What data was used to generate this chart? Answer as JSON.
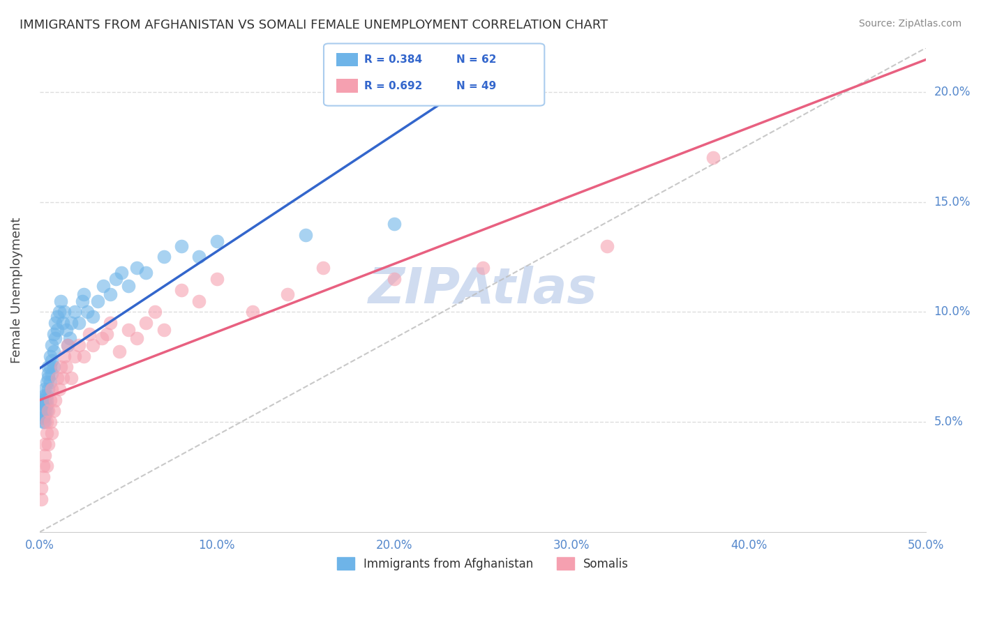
{
  "title": "IMMIGRANTS FROM AFGHANISTAN VS SOMALI FEMALE UNEMPLOYMENT CORRELATION CHART",
  "source": "Source: ZipAtlas.com",
  "ylabel": "Female Unemployment",
  "legend1_r": "R = 0.384",
  "legend1_n": "N = 62",
  "legend2_r": "R = 0.692",
  "legend2_n": "N = 49",
  "legend1_label": "Immigrants from Afghanistan",
  "legend2_label": "Somalis",
  "color_blue": "#6EB4E8",
  "color_pink": "#F5A0B0",
  "color_blue_line": "#3366CC",
  "color_pink_line": "#E86080",
  "color_dashed": "#BBBBBB",
  "background_color": "#FFFFFF",
  "grid_color": "#DDDDDD",
  "title_color": "#333333",
  "watermark_color": "#D0DCF0",
  "xlim": [
    0.0,
    0.5
  ],
  "ylim": [
    0.0,
    0.22
  ],
  "afghanistan_x": [
    0.001,
    0.002,
    0.002,
    0.002,
    0.002,
    0.003,
    0.003,
    0.003,
    0.003,
    0.003,
    0.003,
    0.003,
    0.004,
    0.004,
    0.004,
    0.004,
    0.004,
    0.005,
    0.005,
    0.005,
    0.005,
    0.006,
    0.006,
    0.006,
    0.007,
    0.007,
    0.007,
    0.008,
    0.008,
    0.008,
    0.009,
    0.009,
    0.01,
    0.01,
    0.011,
    0.012,
    0.013,
    0.014,
    0.015,
    0.016,
    0.017,
    0.018,
    0.02,
    0.022,
    0.024,
    0.025,
    0.027,
    0.03,
    0.033,
    0.036,
    0.04,
    0.043,
    0.046,
    0.05,
    0.055,
    0.06,
    0.07,
    0.08,
    0.09,
    0.1,
    0.15,
    0.2
  ],
  "afghanistan_y": [
    0.06,
    0.055,
    0.058,
    0.05,
    0.052,
    0.06,
    0.055,
    0.058,
    0.062,
    0.065,
    0.05,
    0.053,
    0.058,
    0.062,
    0.068,
    0.055,
    0.06,
    0.07,
    0.075,
    0.065,
    0.072,
    0.075,
    0.08,
    0.068,
    0.085,
    0.078,
    0.072,
    0.09,
    0.082,
    0.075,
    0.088,
    0.095,
    0.092,
    0.098,
    0.1,
    0.105,
    0.095,
    0.1,
    0.092,
    0.085,
    0.088,
    0.095,
    0.1,
    0.095,
    0.105,
    0.108,
    0.1,
    0.098,
    0.105,
    0.112,
    0.108,
    0.115,
    0.118,
    0.112,
    0.12,
    0.118,
    0.125,
    0.13,
    0.125,
    0.132,
    0.135,
    0.14
  ],
  "somali_x": [
    0.001,
    0.001,
    0.002,
    0.002,
    0.003,
    0.003,
    0.004,
    0.004,
    0.004,
    0.005,
    0.005,
    0.006,
    0.006,
    0.007,
    0.007,
    0.008,
    0.009,
    0.01,
    0.011,
    0.012,
    0.013,
    0.014,
    0.015,
    0.016,
    0.018,
    0.02,
    0.022,
    0.025,
    0.028,
    0.03,
    0.035,
    0.038,
    0.04,
    0.045,
    0.05,
    0.055,
    0.06,
    0.065,
    0.07,
    0.08,
    0.09,
    0.1,
    0.12,
    0.14,
    0.16,
    0.2,
    0.25,
    0.32,
    0.38
  ],
  "somali_y": [
    0.02,
    0.015,
    0.025,
    0.03,
    0.035,
    0.04,
    0.03,
    0.045,
    0.05,
    0.04,
    0.055,
    0.05,
    0.06,
    0.045,
    0.065,
    0.055,
    0.06,
    0.07,
    0.065,
    0.075,
    0.07,
    0.08,
    0.075,
    0.085,
    0.07,
    0.08,
    0.085,
    0.08,
    0.09,
    0.085,
    0.088,
    0.09,
    0.095,
    0.082,
    0.092,
    0.088,
    0.095,
    0.1,
    0.092,
    0.11,
    0.105,
    0.115,
    0.1,
    0.108,
    0.12,
    0.115,
    0.12,
    0.13,
    0.17
  ]
}
